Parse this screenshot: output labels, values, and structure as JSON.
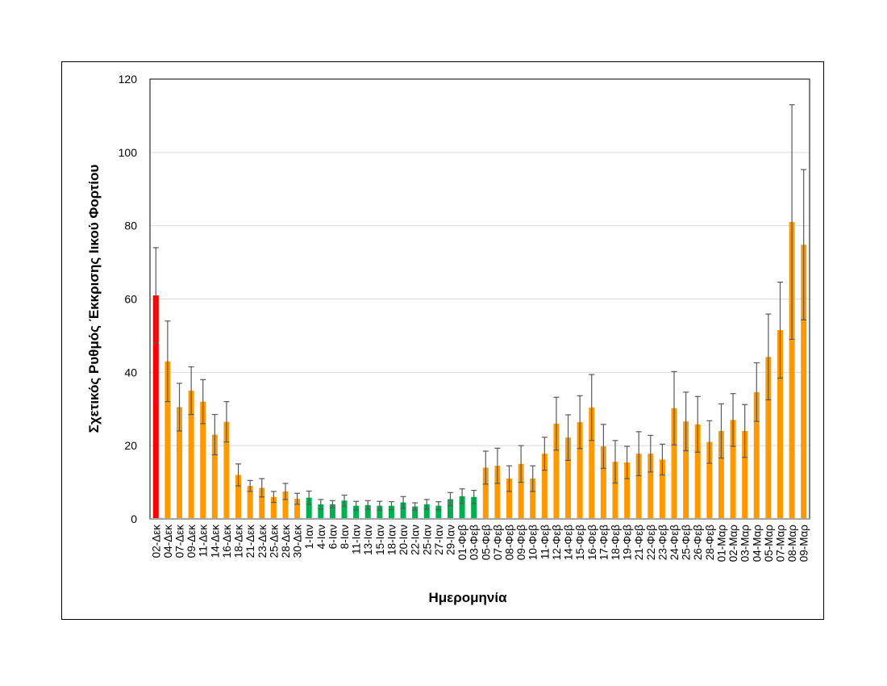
{
  "chart_data": {
    "type": "bar",
    "title": "",
    "xlabel": "Ημερομηνία",
    "ylabel": "Σχετικός Ρυθμός Έκκρισης Ιικού Φορτίου",
    "ylim": [
      0,
      120
    ],
    "yticks": [
      0,
      20,
      40,
      60,
      80,
      100,
      120
    ],
    "grid": true,
    "legend": null,
    "colors": {
      "red": "#ff0000",
      "orange": "#ff9900",
      "green": "#00b050",
      "error_bar": "#595959",
      "grid": "#d9d9d9",
      "axis": "#a6a6a6"
    },
    "categories": [
      "02-Δεκ",
      "04-Δεκ",
      "07-Δεκ",
      "09-Δεκ",
      "11-Δεκ",
      "14-Δεκ",
      "16-Δεκ",
      "18-Δεκ",
      "21-Δεκ",
      "23-Δεκ",
      "25-Δεκ",
      "28-Δεκ",
      "30-Δεκ",
      "1-Ιαν",
      "4-Ιαν",
      "6-Ιαν",
      "8-Ιαν",
      "11-Ιαν",
      "13-Ιαν",
      "15-Ιαν",
      "18-Ιαν",
      "20-Ιαν",
      "22-Ιαν",
      "25-Ιαν",
      "27-Ιαν",
      "29-Ιαν",
      "01-Φεβ",
      "03-Φεβ",
      "05-Φεβ",
      "07-Φεβ",
      "08-Φεβ",
      "09-Φεβ",
      "10-Φεβ",
      "11-Φεβ",
      "12-Φεβ",
      "14-Φεβ",
      "15-Φεβ",
      "16-Φεβ",
      "17-Φεβ",
      "18-Φεβ",
      "19-Φεβ",
      "21-Φεβ",
      "22-Φεβ",
      "23-Φεβ",
      "24-Φεβ",
      "25-Φεβ",
      "26-Φεβ",
      "28-Φεβ",
      "01-Μαρ",
      "02-Μαρ",
      "03-Μαρ",
      "04-Μαρ",
      "05-Μαρ",
      "07-Μαρ",
      "08-Μαρ",
      "09-Μαρ"
    ],
    "values": [
      61,
      43,
      30.5,
      35,
      32,
      23,
      26.5,
      12,
      9,
      8.5,
      6,
      7.5,
      5.5,
      5.8,
      4,
      4,
      5,
      3.6,
      3.8,
      3.6,
      3.6,
      4.5,
      3.4,
      4,
      3.6,
      5.4,
      6.2,
      6,
      14,
      14.5,
      11,
      15,
      11,
      17.8,
      26,
      22.2,
      26.4,
      30.4,
      19.8,
      15.6,
      15.4,
      17.8,
      17.8,
      16.2,
      30.2,
      26.6,
      25.8,
      21,
      24,
      27,
      24,
      34.6,
      44.2,
      51.5,
      81,
      74.8
    ],
    "errors": [
      13,
      11,
      6.5,
      6.5,
      6,
      5.5,
      5.5,
      3,
      1.5,
      2.5,
      1.5,
      2.2,
      1.5,
      1.8,
      1.3,
      1,
      1.5,
      1.2,
      1.2,
      1.2,
      1.1,
      1.6,
      1,
      1.3,
      1.1,
      1.8,
      2,
      1.8,
      4.5,
      4.8,
      3.5,
      5,
      3.5,
      4.5,
      7.2,
      6.2,
      7.2,
      9,
      6,
      5.8,
      4.4,
      6,
      5,
      4.2,
      10,
      8,
      7.6,
      5.8,
      7.4,
      7.2,
      7.2,
      8,
      11.7,
      13.1,
      32,
      20.5
    ],
    "bar_colors": [
      "red",
      "orange",
      "orange",
      "orange",
      "orange",
      "orange",
      "orange",
      "orange",
      "orange",
      "orange",
      "orange",
      "orange",
      "orange",
      "green",
      "green",
      "green",
      "green",
      "green",
      "green",
      "green",
      "green",
      "green",
      "green",
      "green",
      "green",
      "green",
      "green",
      "green",
      "orange",
      "orange",
      "orange",
      "orange",
      "orange",
      "orange",
      "orange",
      "orange",
      "orange",
      "orange",
      "orange",
      "orange",
      "orange",
      "orange",
      "orange",
      "orange",
      "orange",
      "orange",
      "orange",
      "orange",
      "orange",
      "orange",
      "orange",
      "orange",
      "orange",
      "orange",
      "orange",
      "orange"
    ]
  }
}
